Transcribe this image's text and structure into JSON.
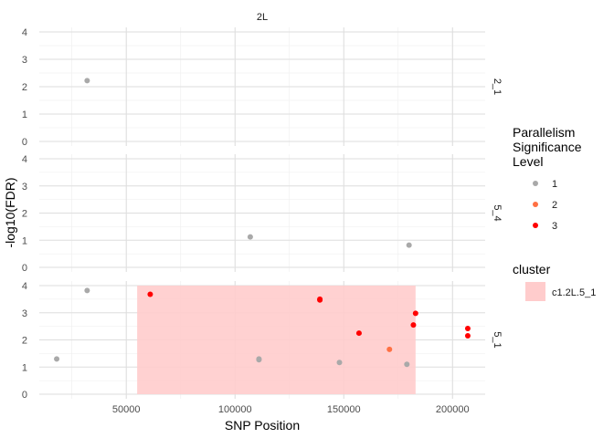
{
  "chart_data": {
    "type": "scatter",
    "facet_title": "2L",
    "xlabel": "SNP Position",
    "ylabel": "-log10(FDR)",
    "xlim": [
      10000,
      215000
    ],
    "ylim": [
      0,
      4
    ],
    "x_ticks": [
      50000,
      100000,
      150000,
      200000
    ],
    "x_tick_labels": [
      "50000",
      "100000",
      "150000",
      "200000"
    ],
    "y_ticks": [
      0,
      1,
      2,
      3,
      4
    ],
    "y_tick_labels": [
      "0",
      "1",
      "2",
      "3",
      "4"
    ],
    "grid": true,
    "legend_placement": "right",
    "panels": [
      {
        "label": "2_1",
        "points": [
          {
            "x": 32000,
            "y": 2.22,
            "level": 1
          }
        ]
      },
      {
        "label": "5_4",
        "points": [
          {
            "x": 107000,
            "y": 1.12,
            "level": 1
          },
          {
            "x": 180000,
            "y": 0.82,
            "level": 1
          }
        ]
      },
      {
        "label": "5_1",
        "cluster_region": {
          "x_start": 55000,
          "x_end": 183000,
          "cluster": "c1.2L.5_1"
        },
        "points": [
          {
            "x": 18000,
            "y": 1.3,
            "level": 1
          },
          {
            "x": 32000,
            "y": 3.82,
            "level": 1
          },
          {
            "x": 61000,
            "y": 3.68,
            "level": 3
          },
          {
            "x": 111000,
            "y": 1.27,
            "level": 1
          },
          {
            "x": 111000,
            "y": 1.3,
            "level": 1
          },
          {
            "x": 139000,
            "y": 3.47,
            "level": 3
          },
          {
            "x": 139000,
            "y": 3.5,
            "level": 3
          },
          {
            "x": 148000,
            "y": 1.17,
            "level": 1
          },
          {
            "x": 157000,
            "y": 2.25,
            "level": 3
          },
          {
            "x": 171000,
            "y": 1.65,
            "level": 2
          },
          {
            "x": 179000,
            "y": 1.1,
            "level": 1
          },
          {
            "x": 182000,
            "y": 2.55,
            "level": 3
          },
          {
            "x": 183000,
            "y": 2.98,
            "level": 3
          },
          {
            "x": 207000,
            "y": 2.42,
            "level": 3
          },
          {
            "x": 207000,
            "y": 2.15,
            "level": 3
          }
        ]
      }
    ],
    "legend_significance": {
      "title_lines": [
        "Parallelism",
        "Significance",
        "Level"
      ],
      "items": [
        {
          "label": "1",
          "color": "#a9a9a9"
        },
        {
          "label": "2",
          "color": "#ff7043"
        },
        {
          "label": "3",
          "color": "#ff0000"
        }
      ]
    },
    "legend_cluster": {
      "title": "cluster",
      "items": [
        {
          "label": "c1.2L.5_1",
          "color": "#ffcccc"
        }
      ]
    }
  }
}
